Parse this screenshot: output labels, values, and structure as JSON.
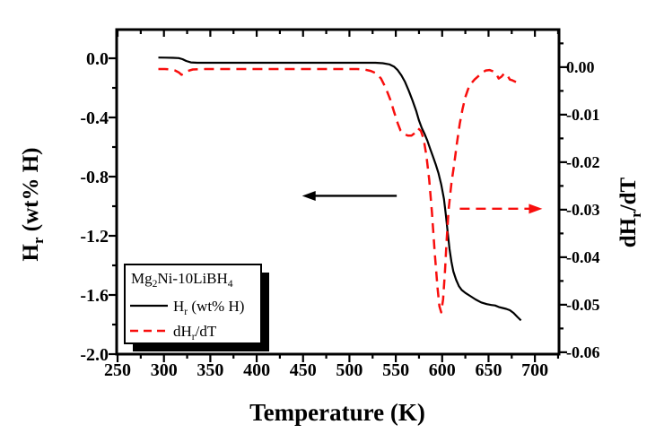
{
  "chart_data": {
    "type": "line",
    "title": "",
    "xlabel": "Temperature (K)",
    "ylabel_left": "H_{r} (wt% H)",
    "ylabel_right": "dH_{r}/dT",
    "xlim": [
      249,
      726
    ],
    "ylim_left": [
      -2.0,
      0.194
    ],
    "ylim_right": [
      -0.0604,
      0.0079
    ],
    "grid": false,
    "background_color": "#ffffff",
    "frame_color": "#000000",
    "accent_color": "#f80e0d",
    "axes": {
      "x": {
        "major_ticks": [
          250,
          300,
          350,
          400,
          450,
          500,
          550,
          600,
          650,
          700
        ],
        "major_labels": [
          "250",
          "300",
          "350",
          "400",
          "450",
          "500",
          "550",
          "600",
          "650",
          "700"
        ],
        "minor_ticks": [
          275,
          325,
          375,
          425,
          475,
          525,
          575,
          625,
          675,
          725
        ]
      },
      "y_left": {
        "major_ticks": [
          0.0,
          -0.4,
          -0.8,
          -1.2,
          -1.6,
          -2.0
        ],
        "major_labels": [
          "0.0",
          "-0.4",
          "-0.8",
          "-1.2",
          "-1.6",
          "-2.0"
        ],
        "minor_ticks": [
          -0.2,
          -0.6,
          -1.0,
          -1.4,
          -1.8
        ]
      },
      "y_right": {
        "major_ticks": [
          0.0,
          -0.01,
          -0.02,
          -0.03,
          -0.04,
          -0.05,
          -0.06
        ],
        "major_labels": [
          "0.00",
          "-0.01",
          "-0.02",
          "-0.03",
          "-0.04",
          "-0.05",
          "-0.06"
        ],
        "minor_ticks": [
          0.005,
          -0.005,
          -0.015,
          -0.025,
          -0.035,
          -0.045,
          -0.055
        ]
      }
    },
    "legend": {
      "position": "bottom-left",
      "title": "Mg_{2}Ni-10LiBH_{4}",
      "entries": [
        {
          "label": "H_{r} (wt% H)",
          "color": "#000000",
          "line_style": "solid"
        },
        {
          "label": "dH_{r}/dT",
          "color": "#f80e0d",
          "line_style": "dashed"
        }
      ]
    },
    "series": [
      {
        "name": "H_{r} (wt% H)",
        "axis": "left",
        "color": "#000000",
        "line_style": "solid",
        "points": [
          [
            294,
            0.005
          ],
          [
            302,
            0.004
          ],
          [
            310,
            0.003
          ],
          [
            316,
            0.001
          ],
          [
            320,
            -0.006
          ],
          [
            324,
            -0.018
          ],
          [
            329,
            -0.028
          ],
          [
            336,
            -0.03
          ],
          [
            370,
            -0.03
          ],
          [
            410,
            -0.03
          ],
          [
            450,
            -0.03
          ],
          [
            490,
            -0.03
          ],
          [
            515,
            -0.03
          ],
          [
            528,
            -0.03
          ],
          [
            536,
            -0.033
          ],
          [
            543,
            -0.041
          ],
          [
            548,
            -0.056
          ],
          [
            552,
            -0.08
          ],
          [
            556,
            -0.115
          ],
          [
            560,
            -0.16
          ],
          [
            564,
            -0.22
          ],
          [
            568,
            -0.285
          ],
          [
            572,
            -0.355
          ],
          [
            575,
            -0.42
          ],
          [
            578,
            -0.47
          ],
          [
            581,
            -0.51
          ],
          [
            584,
            -0.556
          ],
          [
            587,
            -0.61
          ],
          [
            590,
            -0.662
          ],
          [
            593,
            -0.716
          ],
          [
            596,
            -0.775
          ],
          [
            599,
            -0.852
          ],
          [
            602,
            -0.952
          ],
          [
            604,
            -1.06
          ],
          [
            606,
            -1.18
          ],
          [
            608,
            -1.29
          ],
          [
            610,
            -1.375
          ],
          [
            612,
            -1.44
          ],
          [
            615,
            -1.497
          ],
          [
            618,
            -1.54
          ],
          [
            621,
            -1.566
          ],
          [
            625,
            -1.586
          ],
          [
            630,
            -1.606
          ],
          [
            636,
            -1.63
          ],
          [
            642,
            -1.65
          ],
          [
            648,
            -1.662
          ],
          [
            653,
            -1.668
          ],
          [
            657,
            -1.671
          ],
          [
            661,
            -1.681
          ],
          [
            665,
            -1.688
          ],
          [
            669,
            -1.694
          ],
          [
            673,
            -1.703
          ],
          [
            677,
            -1.722
          ],
          [
            681,
            -1.748
          ],
          [
            685,
            -1.772
          ]
        ]
      },
      {
        "name": "dH_{r}/dT",
        "axis": "right",
        "color": "#f80e0d",
        "line_style": "dashed",
        "points": [
          [
            294,
            -0.0004
          ],
          [
            301,
            -0.0004
          ],
          [
            307,
            -0.0005
          ],
          [
            312,
            -0.0007
          ],
          [
            316,
            -0.0011
          ],
          [
            319,
            -0.0016
          ],
          [
            322,
            -0.0013
          ],
          [
            326,
            -0.0008
          ],
          [
            331,
            -0.0005
          ],
          [
            345,
            -0.0004
          ],
          [
            375,
            -0.0004
          ],
          [
            405,
            -0.0004
          ],
          [
            435,
            -0.0004
          ],
          [
            465,
            -0.0004
          ],
          [
            495,
            -0.0004
          ],
          [
            508,
            -0.0004
          ],
          [
            516,
            -0.0005
          ],
          [
            523,
            -0.0008
          ],
          [
            529,
            -0.0013
          ],
          [
            534,
            -0.0024
          ],
          [
            539,
            -0.0043
          ],
          [
            544,
            -0.0068
          ],
          [
            548,
            -0.0093
          ],
          [
            552,
            -0.0118
          ],
          [
            555,
            -0.0133
          ],
          [
            559,
            -0.0141
          ],
          [
            563,
            -0.0144
          ],
          [
            567,
            -0.0144
          ],
          [
            571,
            -0.0138
          ],
          [
            574,
            -0.0129
          ],
          [
            577,
            -0.0134
          ],
          [
            580,
            -0.0151
          ],
          [
            583,
            -0.0186
          ],
          [
            586,
            -0.0236
          ],
          [
            589,
            -0.0306
          ],
          [
            592,
            -0.0391
          ],
          [
            595,
            -0.0464
          ],
          [
            597,
            -0.0503
          ],
          [
            599,
            -0.0516
          ],
          [
            601,
            -0.0489
          ],
          [
            603,
            -0.043
          ],
          [
            605,
            -0.036
          ],
          [
            607,
            -0.0299
          ],
          [
            610,
            -0.0244
          ],
          [
            613,
            -0.0204
          ],
          [
            616,
            -0.0159
          ],
          [
            619,
            -0.0119
          ],
          [
            622,
            -0.0088
          ],
          [
            625,
            -0.0063
          ],
          [
            628,
            -0.0046
          ],
          [
            631,
            -0.0035
          ],
          [
            635,
            -0.0026
          ],
          [
            639,
            -0.0019
          ],
          [
            643,
            -0.0012
          ],
          [
            647,
            -0.0007
          ],
          [
            651,
            -0.0006
          ],
          [
            655,
            -0.0009
          ],
          [
            658,
            -0.0013
          ],
          [
            661,
            -0.0024
          ],
          [
            664,
            -0.002
          ],
          [
            667,
            -0.0013
          ],
          [
            670,
            -0.0016
          ],
          [
            673,
            -0.0026
          ],
          [
            676,
            -0.0028
          ],
          [
            680,
            -0.0032
          ]
        ]
      }
    ],
    "annotations": [
      {
        "name": "hr-axis-arrow",
        "shape": "arrow",
        "color": "#000000",
        "line_style": "solid",
        "axis": "left",
        "y": -0.93,
        "x_tail": 551,
        "x_head": 449
      },
      {
        "name": "dhrdt-axis-arrow",
        "shape": "arrow",
        "color": "#f80e0d",
        "line_style": "dashed",
        "axis": "right",
        "y": -0.0298,
        "x_tail": 619,
        "x_head": 708
      }
    ]
  }
}
